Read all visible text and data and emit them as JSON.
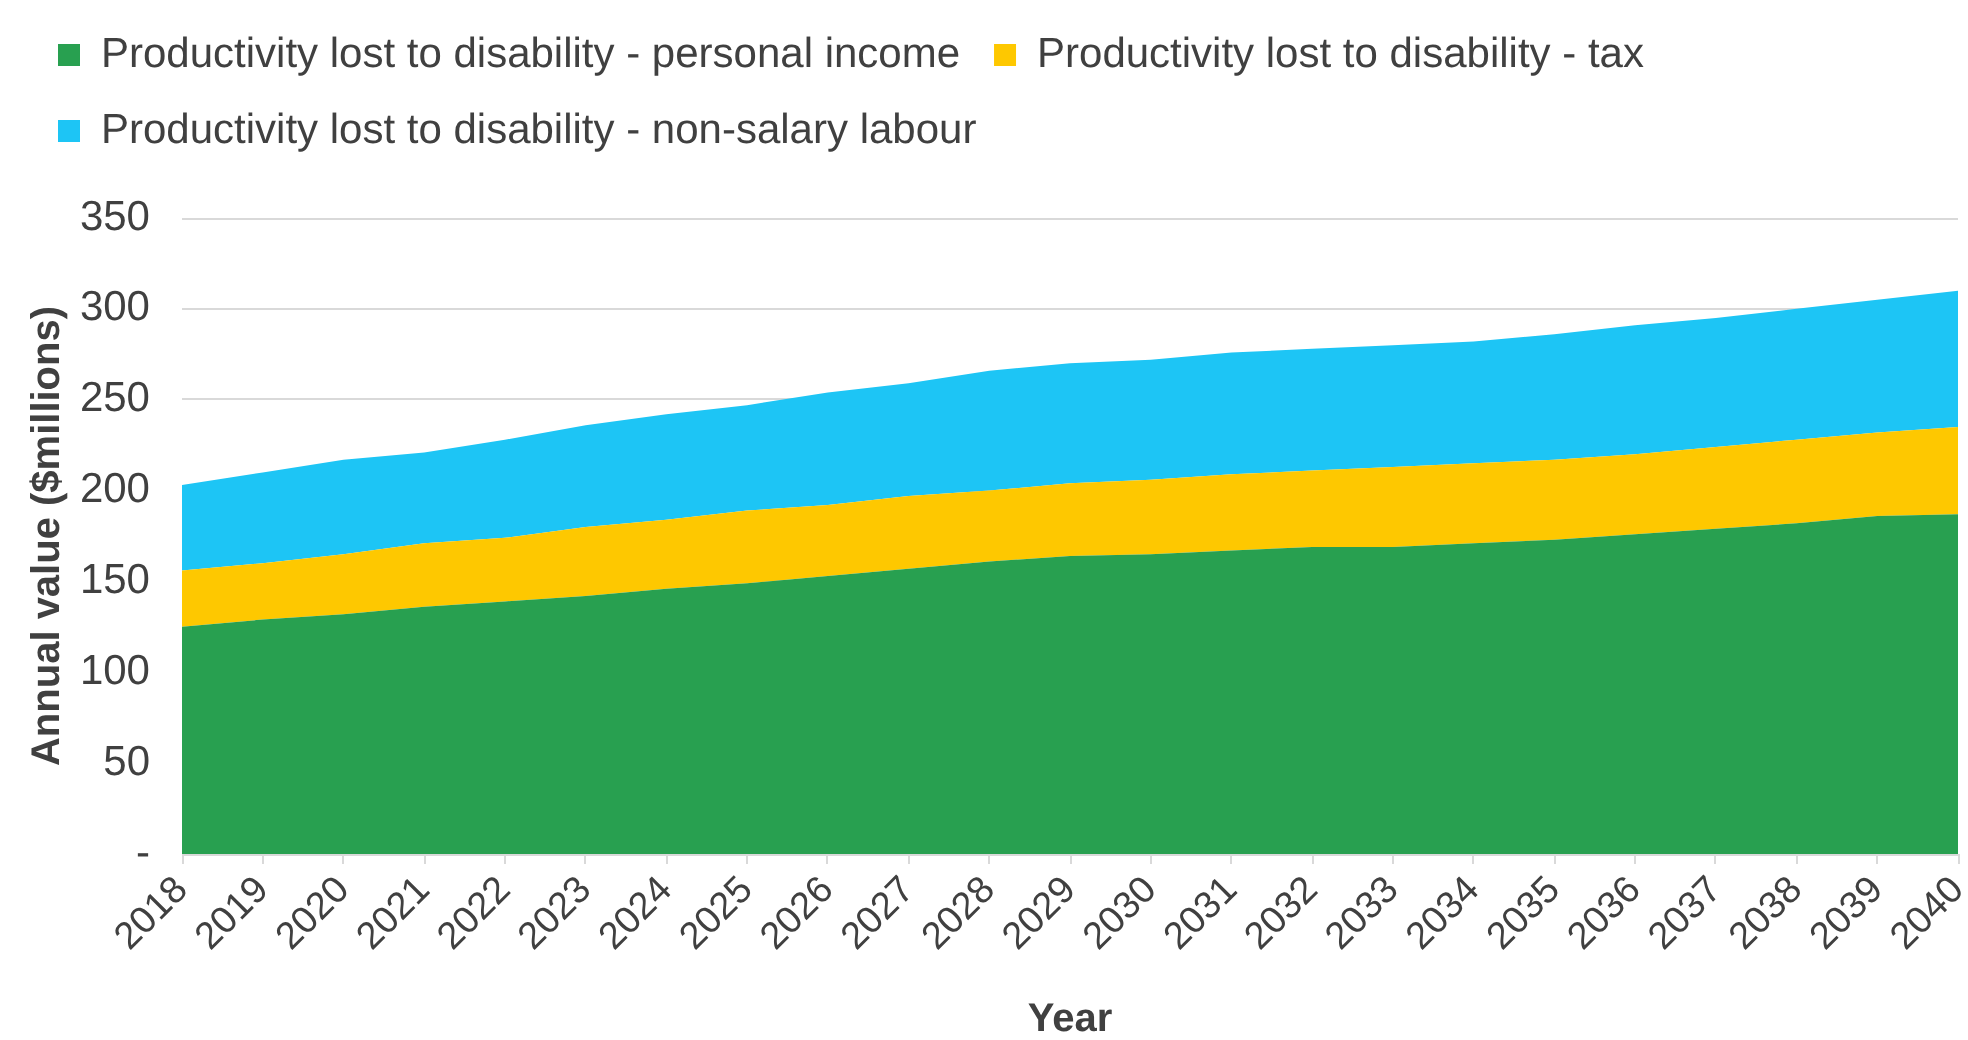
{
  "chart_data": {
    "type": "area",
    "stacked": true,
    "xlabel": "Year",
    "ylabel": "Annual value ($millions)",
    "categories": [
      "2018",
      "2019",
      "2020",
      "2021",
      "2022",
      "2023",
      "2024",
      "2025",
      "2026",
      "2027",
      "2028",
      "2029",
      "2030",
      "2031",
      "2032",
      "2033",
      "2034",
      "2035",
      "2036",
      "2037",
      "2038",
      "2039",
      "2040"
    ],
    "series": [
      {
        "name": "Productivity lost to disability - personal income",
        "color": "#28a050",
        "values": [
          125,
          129,
          132,
          136,
          139,
          142,
          146,
          149,
          153,
          157,
          161,
          164,
          165,
          167,
          169,
          169,
          171,
          173,
          176,
          179,
          182,
          186,
          187
        ]
      },
      {
        "name": "Productivity lost to disability - tax",
        "color": "#fec800",
        "values": [
          31,
          31,
          33,
          35,
          35,
          38,
          38,
          40,
          39,
          40,
          39,
          40,
          41,
          42,
          42,
          44,
          44,
          44,
          44,
          45,
          46,
          46,
          48
        ]
      },
      {
        "name": "Productivity lost to disability - non-salary labour",
        "color": "#1dc5f5",
        "values": [
          47,
          50,
          52,
          50,
          54,
          56,
          58,
          58,
          62,
          62,
          66,
          66,
          66,
          67,
          67,
          67,
          67,
          69,
          71,
          71,
          72,
          73,
          75
        ]
      }
    ],
    "ylim": [
      0,
      350
    ],
    "yticks": [
      {
        "value": 0,
        "label": "-"
      },
      50,
      100,
      150,
      200,
      250,
      300,
      350
    ],
    "grid": "y",
    "legend": "top left"
  }
}
